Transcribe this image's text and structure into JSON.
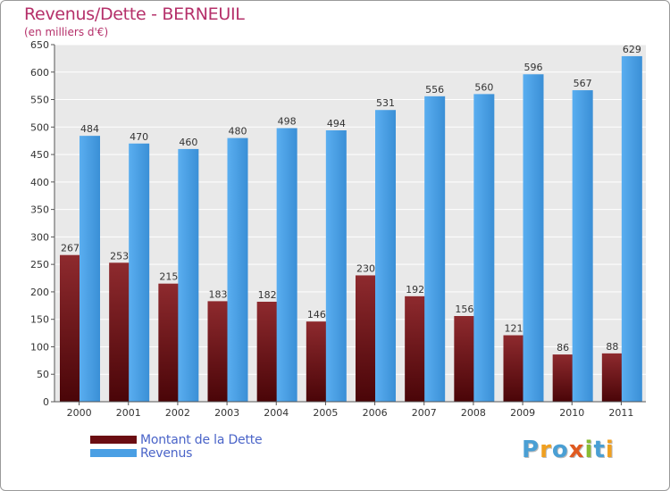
{
  "header": {
    "title": "Revenus/Dette - BERNEUIL",
    "subtitle": "(en milliers d'€)"
  },
  "legend": {
    "items": [
      {
        "label": "Montant de la Dette",
        "color": "#6b0d12"
      },
      {
        "label": "Revenus",
        "color": "#4a9fe4"
      }
    ]
  },
  "logo": {
    "letters": [
      {
        "ch": "P",
        "color": "#4a9fd4"
      },
      {
        "ch": "r",
        "color": "#f0a020"
      },
      {
        "ch": "o",
        "color": "#4a9fd4"
      },
      {
        "ch": "x",
        "color": "#e05a20"
      },
      {
        "ch": "i",
        "color": "#88bb33"
      },
      {
        "ch": "t",
        "color": "#4a9fd4"
      },
      {
        "ch": "i",
        "color": "#f0a020"
      }
    ]
  },
  "chart_data": {
    "type": "bar",
    "title": "Revenus/Dette - BERNEUIL",
    "subtitle": "(en milliers d'€)",
    "categories": [
      "2000",
      "2001",
      "2002",
      "2003",
      "2004",
      "2005",
      "2006",
      "2007",
      "2008",
      "2009",
      "2010",
      "2011"
    ],
    "series": [
      {
        "name": "Montant de la Dette",
        "color": "#7a1a1e",
        "values": [
          267,
          253,
          215,
          183,
          182,
          146,
          230,
          192,
          156,
          121,
          86,
          88
        ]
      },
      {
        "name": "Revenus",
        "color": "#4a9fe4",
        "values": [
          484,
          470,
          460,
          480,
          498,
          494,
          531,
          556,
          560,
          596,
          567,
          629
        ]
      }
    ],
    "ylim": [
      0,
      650
    ],
    "yticks": [
      0,
      50,
      100,
      150,
      200,
      250,
      300,
      350,
      400,
      450,
      500,
      550,
      600,
      650
    ],
    "grid": true,
    "legend_position": "bottom-left"
  }
}
